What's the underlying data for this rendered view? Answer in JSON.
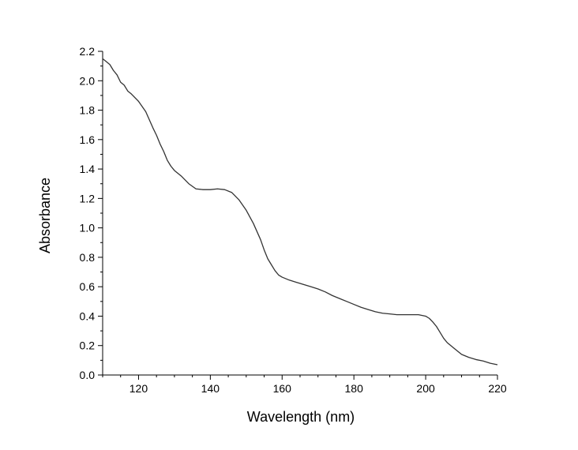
{
  "chart_data": {
    "type": "line",
    "title": "",
    "xlabel": "Wavelength (nm)",
    "ylabel": "Absorbance",
    "xlim": [
      110,
      220
    ],
    "ylim": [
      0.0,
      2.2
    ],
    "x_ticks": [
      120,
      140,
      160,
      180,
      200,
      220
    ],
    "x_tick_labels": [
      "120",
      "140",
      "160",
      "180",
      "200",
      "220"
    ],
    "y_ticks": [
      0.0,
      0.2,
      0.4,
      0.6,
      0.8,
      1.0,
      1.2,
      1.4,
      1.6,
      1.8,
      2.0,
      2.2
    ],
    "y_tick_labels": [
      "0.0",
      "0.2",
      "0.4",
      "0.6",
      "0.8",
      "1.0",
      "1.2",
      "1.4",
      "1.6",
      "1.8",
      "2.0",
      "2.2"
    ],
    "grid": false,
    "legend": "none",
    "line_color": "#333333",
    "series": [
      {
        "x": [
          110,
          111,
          112,
          113,
          114,
          115,
          116,
          117,
          118,
          120,
          122,
          124,
          125,
          126,
          127,
          128,
          129,
          130,
          132,
          134,
          136,
          138,
          140,
          142,
          144,
          146,
          148,
          150,
          152,
          154,
          155,
          156,
          157,
          158,
          159,
          160,
          162,
          164,
          166,
          168,
          170,
          172,
          174,
          176,
          178,
          180,
          182,
          184,
          186,
          188,
          190,
          192,
          194,
          196,
          198,
          200,
          201,
          202,
          203,
          204,
          205,
          206,
          208,
          210,
          212,
          214,
          216,
          218,
          220
        ],
        "y": [
          2.15,
          2.13,
          2.11,
          2.07,
          2.04,
          1.99,
          1.97,
          1.93,
          1.91,
          1.86,
          1.79,
          1.68,
          1.63,
          1.57,
          1.52,
          1.46,
          1.42,
          1.39,
          1.35,
          1.3,
          1.265,
          1.26,
          1.26,
          1.265,
          1.26,
          1.24,
          1.19,
          1.12,
          1.03,
          0.92,
          0.85,
          0.79,
          0.75,
          0.71,
          0.68,
          0.665,
          0.645,
          0.63,
          0.615,
          0.6,
          0.585,
          0.565,
          0.54,
          0.52,
          0.5,
          0.48,
          0.46,
          0.445,
          0.43,
          0.42,
          0.415,
          0.41,
          0.41,
          0.41,
          0.41,
          0.4,
          0.385,
          0.36,
          0.33,
          0.29,
          0.25,
          0.22,
          0.18,
          0.14,
          0.12,
          0.105,
          0.095,
          0.08,
          0.07
        ]
      }
    ]
  }
}
